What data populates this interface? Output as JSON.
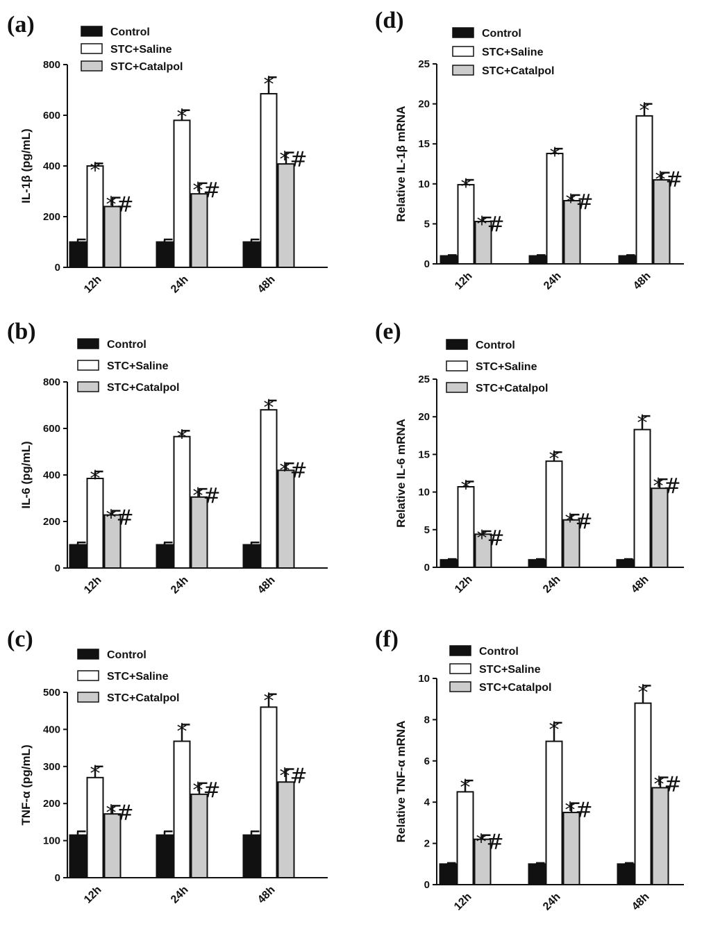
{
  "legend": [
    "Control",
    "STC+Saline",
    "STC+Catalpol"
  ],
  "colors": {
    "control": "#111111",
    "saline": "#ffffff",
    "catalpol": "#cccccc",
    "stroke": "#111111"
  },
  "chart_data": [
    {
      "panel": "(a)",
      "type": "bar",
      "ylabel": "IL-1β (pg/mL)",
      "categories": [
        "12h",
        "24h",
        "48h"
      ],
      "ylim": [
        0,
        800
      ],
      "yticks": [
        0,
        200,
        400,
        600,
        800
      ],
      "series": [
        {
          "name": "Control",
          "values": [
            100,
            100,
            100
          ],
          "errors": [
            10,
            10,
            10
          ],
          "marks": [
            "",
            "",
            ""
          ]
        },
        {
          "name": "STC+Saline",
          "values": [
            400,
            580,
            685
          ],
          "errors": [
            10,
            40,
            65
          ],
          "marks": [
            "*",
            "*",
            "*"
          ]
        },
        {
          "name": "STC+Catalpol",
          "values": [
            240,
            290,
            408
          ],
          "errors": [
            35,
            42,
            45
          ],
          "marks": [
            "*#",
            "*#",
            "*#"
          ]
        }
      ]
    },
    {
      "panel": "(b)",
      "type": "bar",
      "ylabel": "IL-6 (pg/mL)",
      "categories": [
        "12h",
        "24h",
        "48h"
      ],
      "ylim": [
        0,
        800
      ],
      "yticks": [
        0,
        200,
        400,
        600,
        800
      ],
      "series": [
        {
          "name": "Control",
          "values": [
            100,
            100,
            100
          ],
          "errors": [
            10,
            10,
            10
          ],
          "marks": [
            "",
            "",
            ""
          ]
        },
        {
          "name": "STC+Saline",
          "values": [
            385,
            565,
            680
          ],
          "errors": [
            30,
            25,
            40
          ],
          "marks": [
            "*",
            "*",
            "*"
          ]
        },
        {
          "name": "STC+Catalpol",
          "values": [
            228,
            305,
            420
          ],
          "errors": [
            18,
            35,
            30
          ],
          "marks": [
            "*#",
            "*#",
            "*#"
          ]
        }
      ]
    },
    {
      "panel": "(c)",
      "type": "bar",
      "ylabel": "TNF-α (pg/mL)",
      "categories": [
        "12h",
        "24h",
        "48h"
      ],
      "ylim": [
        0,
        500
      ],
      "yticks": [
        0,
        100,
        200,
        300,
        400,
        500
      ],
      "series": [
        {
          "name": "Control",
          "values": [
            115,
            115,
            115
          ],
          "errors": [
            10,
            10,
            10
          ],
          "marks": [
            "",
            "",
            ""
          ]
        },
        {
          "name": "STC+Saline",
          "values": [
            270,
            368,
            460
          ],
          "errors": [
            30,
            45,
            35
          ],
          "marks": [
            "*",
            "*",
            "*"
          ]
        },
        {
          "name": "STC+Catalpol",
          "values": [
            172,
            225,
            258
          ],
          "errors": [
            22,
            30,
            35
          ],
          "marks": [
            "*#",
            "*#",
            "*#"
          ]
        }
      ]
    },
    {
      "panel": "(d)",
      "type": "bar",
      "ylabel": "Relative IL-1β mRNA",
      "categories": [
        "12h",
        "24h",
        "48h"
      ],
      "ylim": [
        0,
        25
      ],
      "yticks": [
        0,
        5,
        10,
        15,
        20,
        25
      ],
      "series": [
        {
          "name": "Control",
          "values": [
            1,
            1,
            1
          ],
          "errors": [
            0.1,
            0.1,
            0.1
          ],
          "marks": [
            "",
            "",
            ""
          ]
        },
        {
          "name": "STC+Saline",
          "values": [
            9.9,
            13.8,
            18.5
          ],
          "errors": [
            0.6,
            0.6,
            1.5
          ],
          "marks": [
            "*",
            "*",
            "*"
          ]
        },
        {
          "name": "STC+Catalpol",
          "values": [
            5.3,
            7.9,
            10.5
          ],
          "errors": [
            0.5,
            0.7,
            0.9
          ],
          "marks": [
            "*#",
            "*#",
            "*#"
          ]
        }
      ]
    },
    {
      "panel": "(e)",
      "type": "bar",
      "ylabel": "Relative IL-6 mRNA",
      "categories": [
        "12h",
        "24h",
        "48h"
      ],
      "ylim": [
        0,
        25
      ],
      "yticks": [
        0,
        5,
        10,
        15,
        20,
        25
      ],
      "series": [
        {
          "name": "Control",
          "values": [
            1,
            1,
            1
          ],
          "errors": [
            0.1,
            0.1,
            0.1
          ],
          "marks": [
            "",
            "",
            ""
          ]
        },
        {
          "name": "STC+Saline",
          "values": [
            10.7,
            14.1,
            18.3
          ],
          "errors": [
            0.7,
            1.2,
            1.8
          ],
          "marks": [
            "*",
            "*",
            "*"
          ]
        },
        {
          "name": "STC+Catalpol",
          "values": [
            4.4,
            6.3,
            10.5
          ],
          "errors": [
            0.4,
            0.7,
            1.2
          ],
          "marks": [
            "*#",
            "*#",
            "*#"
          ]
        }
      ]
    },
    {
      "panel": "(f)",
      "type": "bar",
      "ylabel": "Relative TNF-α mRNA",
      "categories": [
        "12h",
        "24h",
        "48h"
      ],
      "ylim": [
        0,
        10
      ],
      "yticks": [
        0,
        2,
        4,
        6,
        8,
        10
      ],
      "series": [
        {
          "name": "Control",
          "values": [
            1,
            1,
            1
          ],
          "errors": [
            0.05,
            0.05,
            0.05
          ],
          "marks": [
            "",
            "",
            ""
          ]
        },
        {
          "name": "STC+Saline",
          "values": [
            4.5,
            6.95,
            8.8
          ],
          "errors": [
            0.55,
            0.9,
            0.85
          ],
          "marks": [
            "*",
            "*",
            "*"
          ]
        },
        {
          "name": "STC+Catalpol",
          "values": [
            2.2,
            3.5,
            4.7
          ],
          "errors": [
            0.2,
            0.45,
            0.5
          ],
          "marks": [
            "*#",
            "*#",
            "*#"
          ]
        }
      ]
    }
  ]
}
